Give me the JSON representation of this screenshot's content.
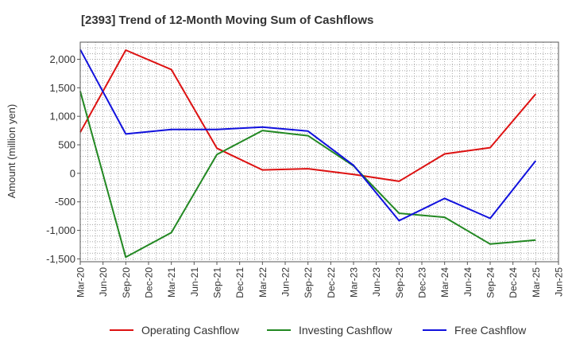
{
  "chart_data": {
    "type": "line",
    "title": "[2393]  Trend of 12-Month Moving Sum of Cashflows",
    "xlabel": "",
    "ylabel": "Amount (million yen)",
    "ylim": [
      -1550,
      2300
    ],
    "yticks": [
      2000,
      1500,
      1000,
      500,
      0,
      -500,
      -1000,
      -1500
    ],
    "ytick_labels": [
      "2,000",
      "1,500",
      "1,000",
      "500",
      "0",
      "-500",
      "-1,000",
      "-1,500"
    ],
    "x_tick_labels": [
      "Mar-20",
      "Jun-20",
      "Sep-20",
      "Dec-20",
      "Mar-21",
      "Jun-21",
      "Sep-21",
      "Dec-21",
      "Mar-22",
      "Jun-22",
      "Sep-22",
      "Dec-22",
      "Mar-23",
      "Jun-23",
      "Sep-23",
      "Dec-23",
      "Mar-24",
      "Jun-24",
      "Sep-24",
      "Dec-24",
      "Mar-25",
      "Jun-25"
    ],
    "x": [
      "Mar-20",
      "Sep-20",
      "Mar-21",
      "Sep-21",
      "Mar-22",
      "Sep-22",
      "Mar-23",
      "Sep-23",
      "Mar-24",
      "Sep-24",
      "Mar-25"
    ],
    "grid": true,
    "legend_position": "bottom",
    "series": [
      {
        "name": "Operating Cashflow",
        "color": "#dd1111",
        "values": [
          720,
          2160,
          1820,
          440,
          60,
          80,
          -20,
          -140,
          340,
          450,
          1390
        ]
      },
      {
        "name": "Investing Cashflow",
        "color": "#228822",
        "values": [
          1440,
          -1470,
          -1040,
          330,
          750,
          660,
          130,
          -700,
          -770,
          -1240,
          -1170
        ]
      },
      {
        "name": "Free Cashflow",
        "color": "#1111dd",
        "values": [
          2170,
          690,
          770,
          770,
          810,
          740,
          140,
          -830,
          -440,
          -790,
          220
        ]
      }
    ]
  }
}
